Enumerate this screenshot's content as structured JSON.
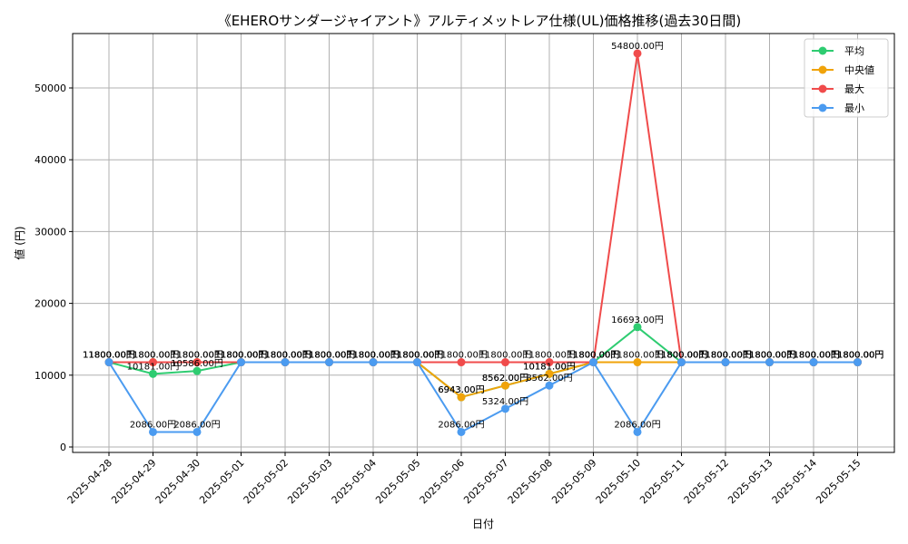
{
  "chart_data": {
    "type": "line",
    "title": "《EHEROサンダージャイアント》アルティメットレア仕様(UL)価格推移(過去30日間)",
    "xlabel": "日付",
    "ylabel": "値 (円)",
    "ylim": [
      0,
      57000
    ],
    "yticks": [
      0,
      10000,
      20000,
      30000,
      40000,
      50000
    ],
    "grid": true,
    "legend_position": "top-right",
    "categories": [
      "2025-04-28",
      "2025-04-29",
      "2025-04-30",
      "2025-05-01",
      "2025-05-02",
      "2025-05-03",
      "2025-05-04",
      "2025-05-05",
      "2025-05-06",
      "2025-05-07",
      "2025-05-08",
      "2025-05-09",
      "2025-05-10",
      "2025-05-11",
      "2025-05-12",
      "2025-05-13",
      "2025-05-14",
      "2025-05-15"
    ],
    "series": [
      {
        "name": "平均",
        "color": "#2ecc71",
        "values": [
          11800,
          10181,
          10586,
          11800,
          11800,
          11800,
          11800,
          11800,
          6943,
          8562,
          10181,
          11800,
          16693,
          11800,
          11800,
          11800,
          11800,
          11800
        ]
      },
      {
        "name": "中央値",
        "color": "#f0a30a",
        "values": [
          11800,
          11800,
          11800,
          11800,
          11800,
          11800,
          11800,
          11800,
          6943,
          8562,
          10181,
          11800,
          11800,
          11800,
          11800,
          11800,
          11800,
          11800
        ]
      },
      {
        "name": "最大",
        "color": "#f04b4b",
        "values": [
          11800,
          11800,
          11800,
          11800,
          11800,
          11800,
          11800,
          11800,
          11800,
          11800,
          11800,
          11800,
          54800,
          11800,
          11800,
          11800,
          11800,
          11800
        ]
      },
      {
        "name": "最小",
        "color": "#4b9bf0",
        "values": [
          11800,
          2086,
          2086,
          11800,
          11800,
          11800,
          11800,
          11800,
          2086,
          5324,
          8562,
          11800,
          2086,
          11800,
          11800,
          11800,
          11800,
          11800
        ]
      }
    ],
    "label_suffix": "円"
  }
}
